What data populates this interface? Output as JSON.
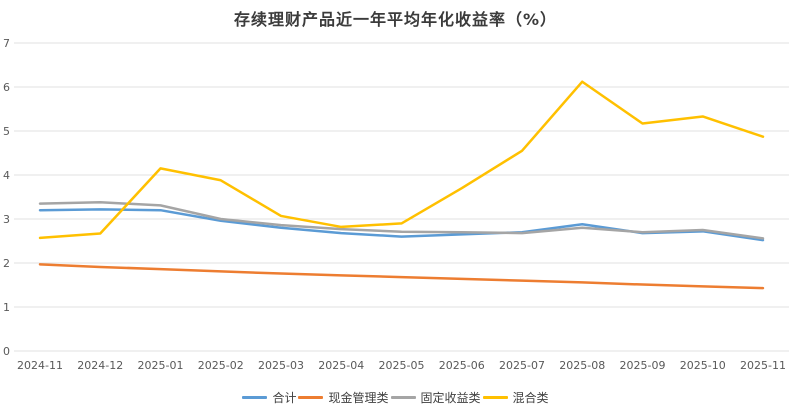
{
  "chart_data": {
    "type": "line",
    "title": "存续理财产品近一年平均年化收益率（%）",
    "title_color": "#3B3B3B",
    "categories": [
      "2024-11",
      "2024-12",
      "2025-01",
      "2025-02",
      "2025-03",
      "2025-04",
      "2025-05",
      "2025-06",
      "2025-07",
      "2025-08",
      "2025-09",
      "2025-10",
      "2025-11"
    ],
    "series": [
      {
        "name": "合计",
        "color": "#5B9BD5",
        "values": [
          3.2,
          3.22,
          3.2,
          2.96,
          2.8,
          2.68,
          2.6,
          2.65,
          2.7,
          2.88,
          2.68,
          2.72,
          2.52
        ]
      },
      {
        "name": "现金管理类",
        "color": "#ED7D31",
        "values": [
          1.97,
          1.91,
          1.86,
          1.81,
          1.76,
          1.72,
          1.68,
          1.64,
          1.6,
          1.56,
          1.51,
          1.47,
          1.43
        ]
      },
      {
        "name": "固定收益类",
        "color": "#A5A5A5",
        "values": [
          3.35,
          3.38,
          3.31,
          3.0,
          2.86,
          2.77,
          2.71,
          2.7,
          2.68,
          2.8,
          2.7,
          2.75,
          2.56
        ]
      },
      {
        "name": "混合类",
        "color": "#FFC000",
        "values": [
          2.57,
          2.67,
          4.15,
          3.88,
          3.07,
          2.82,
          2.9,
          3.7,
          4.55,
          6.12,
          5.17,
          5.33,
          4.87
        ]
      }
    ],
    "y_ticks": [
      "0",
      "1",
      "2",
      "3",
      "4",
      "5",
      "6",
      "7"
    ],
    "ylim": [
      0,
      7
    ],
    "xlabel": "",
    "ylabel": "",
    "grid": "horizontal",
    "gridline_color": "#E2E2E2",
    "axis_label_color": "#595959",
    "legend_position": "bottom",
    "background": "#FFFFFF"
  }
}
